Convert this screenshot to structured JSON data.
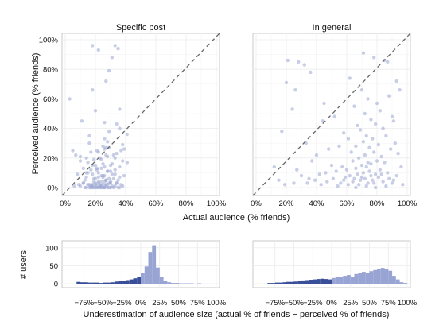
{
  "chart_data": [
    {
      "type": "scatter",
      "title": "Specific post",
      "xlabel": "Actual audience (% friends)",
      "ylabel": "Perceived audience (% friends)",
      "xlim": [
        0,
        100
      ],
      "ylim": [
        0,
        100
      ],
      "xticks": [
        "0%",
        "20%",
        "40%",
        "60%",
        "80%",
        "100%"
      ],
      "yticks": [
        "0%",
        "20%",
        "40%",
        "60%",
        "80%",
        "100%"
      ],
      "reference_line": "y = x (dashed)",
      "grid": true,
      "point_color": "#9aa6d2",
      "series": [
        {
          "x": [
            18,
            22,
            31,
            33,
            35,
            27,
            29,
            3,
            18,
            20,
            36,
            11,
            26,
            34,
            36,
            29,
            41,
            16,
            26,
            28,
            16,
            38,
            25,
            27,
            39,
            37,
            5,
            7,
            10,
            22,
            14,
            27,
            34,
            24,
            38,
            33,
            41,
            10,
            18,
            31,
            36,
            30,
            12,
            26,
            17,
            21,
            28,
            33,
            14,
            30,
            22,
            8,
            18,
            24,
            33,
            39,
            26,
            14,
            25,
            20,
            36,
            29,
            32,
            27,
            35,
            13,
            26,
            22,
            19,
            24,
            29,
            34,
            20,
            12,
            30,
            23,
            25,
            18,
            28,
            20,
            37,
            15,
            23,
            27,
            31,
            17,
            33,
            21,
            24,
            38,
            10,
            26,
            16,
            29,
            22,
            35,
            19,
            28,
            25,
            21,
            13,
            32,
            18,
            24,
            30,
            14,
            26,
            20,
            23,
            36,
            17,
            27,
            19,
            22,
            25,
            31,
            15,
            28,
            21,
            24,
            6,
            9,
            12,
            16,
            18,
            22,
            27,
            30,
            34,
            20,
            25,
            15,
            19,
            23,
            28,
            32,
            17,
            21,
            26,
            29
          ],
          "y": [
            96,
            93,
            88,
            96,
            94,
            72,
            79,
            60,
            66,
            52,
            53,
            45,
            44,
            43,
            40,
            38,
            36,
            35,
            33,
            31,
            30,
            29,
            28,
            27,
            26,
            25,
            25,
            22,
            21,
            24,
            20,
            22,
            23,
            19,
            18,
            20,
            17,
            18,
            15,
            16,
            14,
            15,
            13,
            14,
            12,
            13,
            11,
            12,
            10,
            11,
            10,
            9,
            9,
            8,
            9,
            8,
            8,
            7,
            7,
            6,
            7,
            6,
            6,
            5,
            5,
            5,
            4,
            4,
            4,
            4,
            3,
            3,
            3,
            3,
            3,
            2,
            2,
            2,
            2,
            2,
            2,
            2,
            1,
            1,
            1,
            1,
            1,
            1,
            1,
            1,
            1,
            0,
            0,
            0,
            0,
            0,
            0,
            0,
            0,
            0,
            0,
            0,
            0,
            0,
            0,
            0,
            0,
            0,
            0,
            0,
            0,
            5,
            6,
            7,
            8,
            9,
            10,
            11,
            12,
            13,
            1,
            2,
            3,
            2,
            1,
            3,
            2,
            4,
            3,
            15,
            16,
            17,
            19,
            20,
            21,
            22,
            24,
            25,
            26,
            27
          ]
        }
      ]
    },
    {
      "type": "scatter",
      "title": "In general",
      "xlabel": "Actual audience (% friends)",
      "xlim": [
        0,
        100
      ],
      "ylim": [
        0,
        100
      ],
      "xticks": [
        "0%",
        "20%",
        "40%",
        "60%",
        "80%",
        "100%"
      ],
      "reference_line": "y = x (dashed)",
      "grid": true,
      "point_color": "#9aa6d2",
      "series": [
        {
          "x": [
            21,
            28,
            32,
            36,
            71,
            78,
            85,
            62,
            20,
            26,
            45,
            24,
            87,
            17,
            44,
            52,
            70,
            93,
            12,
            33,
            48,
            65,
            74,
            80,
            88,
            95,
            58,
            67,
            72,
            76,
            82,
            90,
            40,
            55,
            61,
            69,
            73,
            79,
            84,
            91,
            27,
            37,
            50,
            63,
            66,
            71,
            75,
            77,
            81,
            86,
            92,
            15,
            30,
            42,
            57,
            64,
            68,
            72,
            74,
            78,
            83,
            89,
            94,
            35,
            46,
            53,
            60,
            66,
            70,
            73,
            76,
            80,
            85,
            96,
            25,
            39,
            51,
            59,
            62,
            67,
            71,
            75,
            79,
            82,
            87,
            93,
            43,
            56,
            64,
            69,
            72,
            77,
            81,
            88,
            54,
            61,
            68,
            74,
            78,
            84,
            90,
            97,
            66,
            73,
            79,
            86,
            19,
            34,
            47,
            58,
            65,
            70,
            76,
            83,
            91
          ],
          "y": [
            86,
            85,
            83,
            78,
            91,
            88,
            86,
            74,
            71,
            66,
            57,
            53,
            85,
            38,
            45,
            48,
            66,
            72,
            14,
            30,
            26,
            55,
            60,
            57,
            62,
            66,
            37,
            42,
            50,
            46,
            52,
            48,
            22,
            28,
            33,
            39,
            35,
            43,
            40,
            45,
            12,
            18,
            15,
            24,
            28,
            31,
            27,
            33,
            29,
            35,
            30,
            5,
            8,
            9,
            14,
            18,
            20,
            22,
            17,
            24,
            21,
            26,
            23,
            6,
            10,
            11,
            12,
            13,
            15,
            14,
            16,
            18,
            17,
            14,
            3,
            5,
            6,
            7,
            8,
            9,
            10,
            11,
            9,
            12,
            10,
            8,
            2,
            3,
            4,
            5,
            6,
            5,
            7,
            6,
            1,
            2,
            2,
            3,
            3,
            4,
            3,
            2,
            0,
            1,
            0,
            1,
            2,
            3,
            4,
            5,
            6,
            7,
            8,
            9,
            5
          ]
        }
      ]
    },
    {
      "type": "bar",
      "xlabel": "Underestimation of audience size (actual % of friends − perceived % of friends)",
      "ylabel": "# users",
      "xlim": [
        -100,
        100
      ],
      "ylim": [
        0,
        115
      ],
      "xticks": [
        "−75%",
        "−50%",
        "−25%",
        "0%",
        "25%",
        "50%",
        "75%",
        "100%"
      ],
      "yticks": [
        "0",
        "50",
        "100"
      ],
      "colors": {
        "negative": "#3a4f9a",
        "positive": "#98a4d3"
      },
      "x": [
        -82.5,
        -77.5,
        -72.5,
        -67.5,
        -62.5,
        -57.5,
        -52.5,
        -47.5,
        -42.5,
        -37.5,
        -32.5,
        -27.5,
        -22.5,
        -17.5,
        -12.5,
        -7.5,
        -2.5,
        2.5,
        7.5,
        12.5,
        17.5,
        22.5,
        27.5,
        32.5,
        37.5,
        42.5,
        47.5,
        52.5,
        57.5,
        62.5,
        67.5,
        72.5,
        77.5,
        82.5,
        87.5,
        92.5,
        97.5
      ],
      "values": [
        5,
        4,
        4,
        3,
        3,
        3,
        2,
        3,
        3,
        4,
        6,
        7,
        8,
        10,
        12,
        15,
        20,
        30,
        48,
        88,
        107,
        45,
        20,
        8,
        4,
        2,
        2,
        1,
        1,
        1,
        1,
        0,
        1,
        0,
        0,
        0,
        0
      ]
    },
    {
      "type": "bar",
      "xlabel": "Underestimation of audience size (actual % of friends − perceived % of friends)",
      "xlim": [
        -100,
        100
      ],
      "ylim": [
        0,
        115
      ],
      "xticks": [
        "−75%",
        "−50%",
        "−25%",
        "0%",
        "25%",
        "50%",
        "75%",
        "100%"
      ],
      "colors": {
        "negative": "#3a4f9a",
        "positive": "#98a4d3"
      },
      "x": [
        -82.5,
        -77.5,
        -72.5,
        -67.5,
        -62.5,
        -57.5,
        -52.5,
        -47.5,
        -42.5,
        -37.5,
        -32.5,
        -27.5,
        -22.5,
        -17.5,
        -12.5,
        -7.5,
        -2.5,
        2.5,
        7.5,
        12.5,
        17.5,
        22.5,
        27.5,
        32.5,
        37.5,
        42.5,
        47.5,
        52.5,
        57.5,
        62.5,
        67.5,
        72.5,
        77.5,
        82.5,
        87.5,
        92.5,
        97.5
      ],
      "values": [
        2,
        2,
        3,
        3,
        4,
        5,
        5,
        6,
        7,
        9,
        10,
        11,
        12,
        13,
        14,
        13,
        12,
        16,
        20,
        18,
        22,
        24,
        20,
        27,
        29,
        33,
        31,
        35,
        38,
        41,
        44,
        40,
        36,
        22,
        12,
        4,
        2
      ]
    }
  ]
}
